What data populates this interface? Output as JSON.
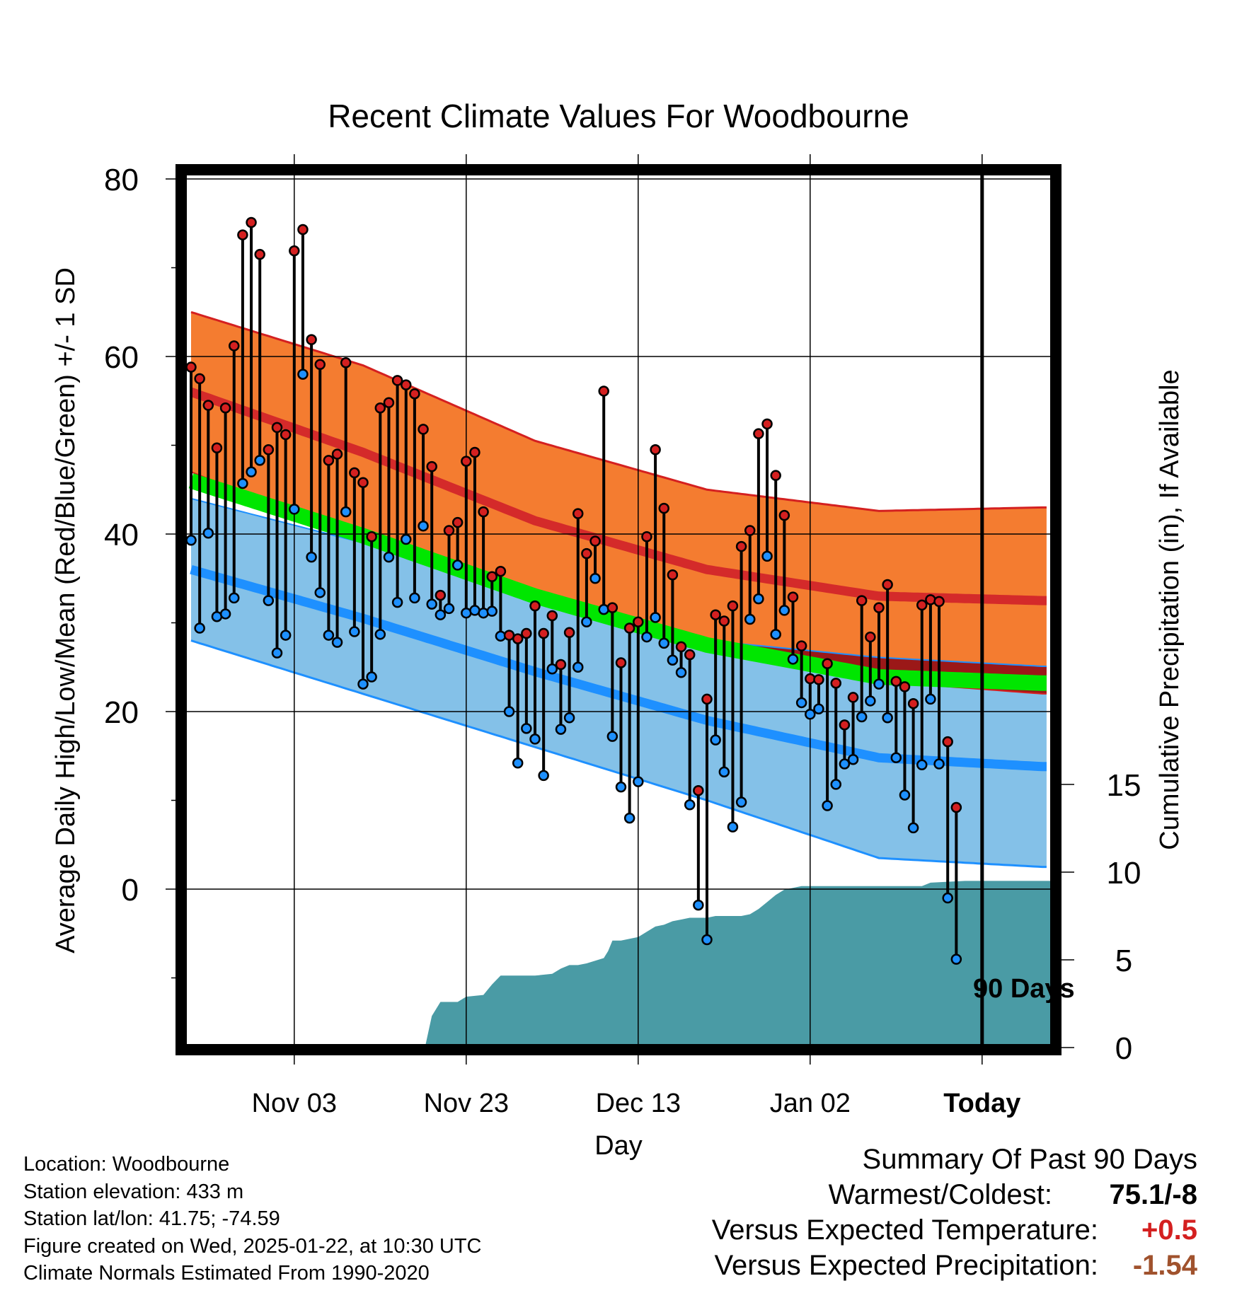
{
  "chart_data": {
    "type": "line",
    "title": "Recent Climate Values For Woodbourne",
    "xlabel": "Day",
    "ylabel": "Average Daily High/Low/Mean (Red/Blue/Green) +/- 1 SD",
    "y2label": "Cumulative Precipitation (in), If Available",
    "ylim": [
      -18,
      80
    ],
    "y2lim": [
      0,
      50
    ],
    "y_ticks": [
      0,
      20,
      40,
      60,
      80
    ],
    "y2_ticks": [
      0,
      5,
      10,
      15
    ],
    "x_tick_labels": [
      "Nov 03",
      "Nov 23",
      "Dec 13",
      "Jan 02",
      "Today"
    ],
    "today_marker_label": "90 Days",
    "normal_high": {
      "x": [
        0,
        20,
        40,
        60,
        80,
        99
      ],
      "mean": [
        56.0,
        49.2,
        41.5,
        36.0,
        33.0,
        32.5
      ],
      "upper": [
        65.0,
        59.0,
        50.5,
        45.0,
        42.6,
        43.0
      ]
    },
    "normal_low": {
      "x": [
        0,
        20,
        40,
        60,
        80,
        99
      ],
      "mean": [
        36.0,
        30.5,
        24.5,
        19.0,
        14.8,
        13.8
      ],
      "lower": [
        28.0,
        22.0,
        16.0,
        10.0,
        3.5,
        2.5
      ]
    },
    "normal_mean": {
      "x": [
        0,
        20,
        40,
        60,
        80,
        99
      ],
      "mean": [
        46.0,
        39.8,
        33.0,
        27.5,
        23.9,
        23.2
      ]
    },
    "series": [
      {
        "name": "Daily High",
        "color": "#d42020",
        "values": [
          58.8,
          57.5,
          54.5,
          49.7,
          54.2,
          61.2,
          73.7,
          75.1,
          71.5,
          49.5,
          52.0,
          51.2,
          71.9,
          74.3,
          61.9,
          59.1,
          48.3,
          49.0,
          59.3,
          46.9,
          45.8,
          39.7,
          54.2,
          54.8,
          57.3,
          56.8,
          55.8,
          51.8,
          47.6,
          33.1,
          40.4,
          41.3,
          48.2,
          49.2,
          42.5,
          35.2,
          35.8,
          28.6,
          28.2,
          28.8,
          31.9,
          28.8,
          30.8,
          25.3,
          28.9,
          42.3,
          37.8,
          39.2,
          56.1,
          31.7,
          25.5,
          29.4,
          30.1,
          39.7,
          49.5,
          42.9,
          35.4,
          27.3,
          26.4,
          11.1,
          21.4,
          30.9,
          30.2,
          31.9,
          38.6,
          40.4,
          51.3,
          52.4,
          46.6,
          42.1,
          32.9,
          27.4,
          23.7,
          23.6,
          25.4,
          23.2,
          18.5,
          21.6,
          32.5,
          28.4,
          31.7,
          34.3,
          23.4,
          22.8,
          20.9,
          32.0,
          32.6,
          32.4,
          16.6,
          9.2
        ]
      },
      {
        "name": "Daily Low",
        "color": "#1e90ff",
        "values": [
          39.3,
          29.4,
          40.1,
          30.7,
          31.0,
          32.8,
          45.7,
          47.0,
          48.3,
          32.5,
          26.6,
          28.6,
          42.8,
          58.0,
          37.4,
          33.4,
          28.6,
          27.8,
          42.5,
          29.0,
          23.1,
          23.9,
          28.7,
          37.4,
          32.3,
          39.4,
          32.8,
          40.9,
          32.1,
          30.9,
          31.6,
          36.5,
          31.1,
          31.4,
          31.1,
          31.3,
          28.5,
          20.0,
          14.2,
          18.1,
          16.9,
          12.8,
          24.8,
          18.0,
          19.3,
          25.0,
          30.1,
          35.0,
          31.5,
          17.2,
          11.5,
          8.0,
          12.1,
          28.4,
          30.6,
          27.7,
          25.8,
          24.4,
          9.5,
          -1.8,
          -5.7,
          16.8,
          13.2,
          7.0,
          9.8,
          30.4,
          32.7,
          37.5,
          28.7,
          31.4,
          25.9,
          21.0,
          19.7,
          20.3,
          9.4,
          11.8,
          14.1,
          14.6,
          19.4,
          21.2,
          23.1,
          19.3,
          14.8,
          10.6,
          6.9,
          14.0,
          21.4,
          14.1,
          -1.0,
          -7.9
        ]
      },
      {
        "name": "Cumulative Precipitation (in)",
        "color": "#4a9ba5",
        "x": [
          0,
          27.2,
          28,
          29,
          31,
          32,
          34,
          35,
          36,
          40,
          42,
          43,
          44,
          45,
          46,
          48,
          48.5,
          49,
          50,
          51,
          52,
          53,
          54,
          55,
          56,
          57,
          58,
          59,
          60,
          61,
          62,
          63,
          64,
          65,
          66,
          67,
          68,
          69,
          70,
          71,
          72,
          73,
          74,
          80,
          85,
          86,
          90,
          99
        ],
        "values": [
          0,
          0,
          1.8,
          2.6,
          2.6,
          2.9,
          3.0,
          3.6,
          4.1,
          4.1,
          4.2,
          4.5,
          4.7,
          4.7,
          4.8,
          5.1,
          5.5,
          6.1,
          6.1,
          6.2,
          6.3,
          6.6,
          6.9,
          7.0,
          7.2,
          7.3,
          7.4,
          7.4,
          7.4,
          7.5,
          7.5,
          7.5,
          7.5,
          7.6,
          7.9,
          8.3,
          8.7,
          9.0,
          9.1,
          9.2,
          9.2,
          9.2,
          9.2,
          9.2,
          9.2,
          9.4,
          9.5,
          9.5
        ]
      }
    ]
  },
  "info": {
    "location": "Location: Woodbourne",
    "elevation": "Station elevation: 433 m",
    "latlon": "Station lat/lon: 41.75; -74.59",
    "created": "Figure created on Wed, 2025-01-22, at 10:30 UTC",
    "normals": "Climate Normals Estimated From 1990-2020"
  },
  "summary": {
    "title": "Summary Of Past 90 Days",
    "warmest_label": "Warmest/Coldest:",
    "warmest_value": "75.1/-8",
    "temp_label": "Versus Expected Temperature:",
    "temp_value": "+0.5",
    "temp_color": "#d42020",
    "precip_label": "Versus Expected Precipitation:",
    "precip_value": "-1.54",
    "precip_color": "#a0522d"
  }
}
